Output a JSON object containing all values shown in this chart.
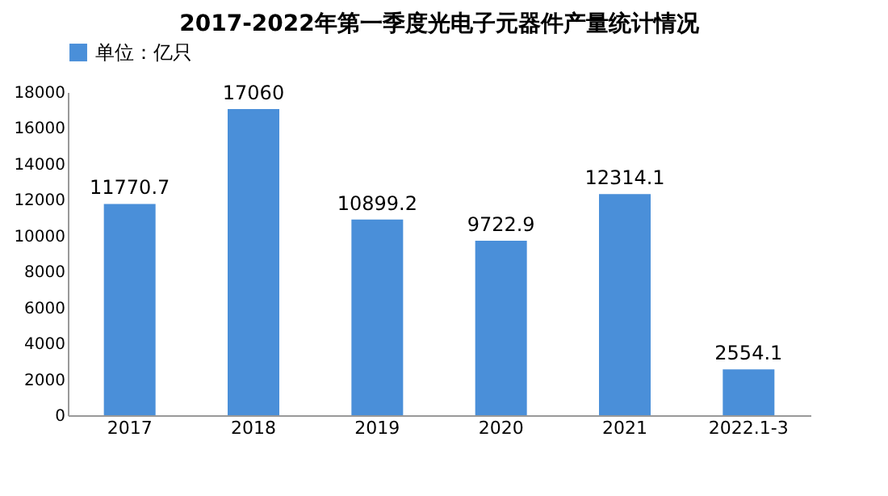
{
  "chart_data": {
    "type": "bar",
    "title": "2017-2022年第一季度光电子元器件产量统计情况",
    "categories": [
      "2017",
      "2018",
      "2019",
      "2020",
      "2021",
      "2022.1-3"
    ],
    "series": [
      {
        "name": "单位：亿只",
        "color": "#4a8fd9",
        "values": [
          11770.7,
          17060,
          10899.2,
          9722.9,
          12314.1,
          2554.1
        ]
      }
    ],
    "ylim": [
      0,
      18000
    ],
    "yticks": [
      0,
      2000,
      4000,
      6000,
      8000,
      10000,
      12000,
      14000,
      16000,
      18000
    ],
    "data_labels": true,
    "legend": "top",
    "grid": false
  }
}
